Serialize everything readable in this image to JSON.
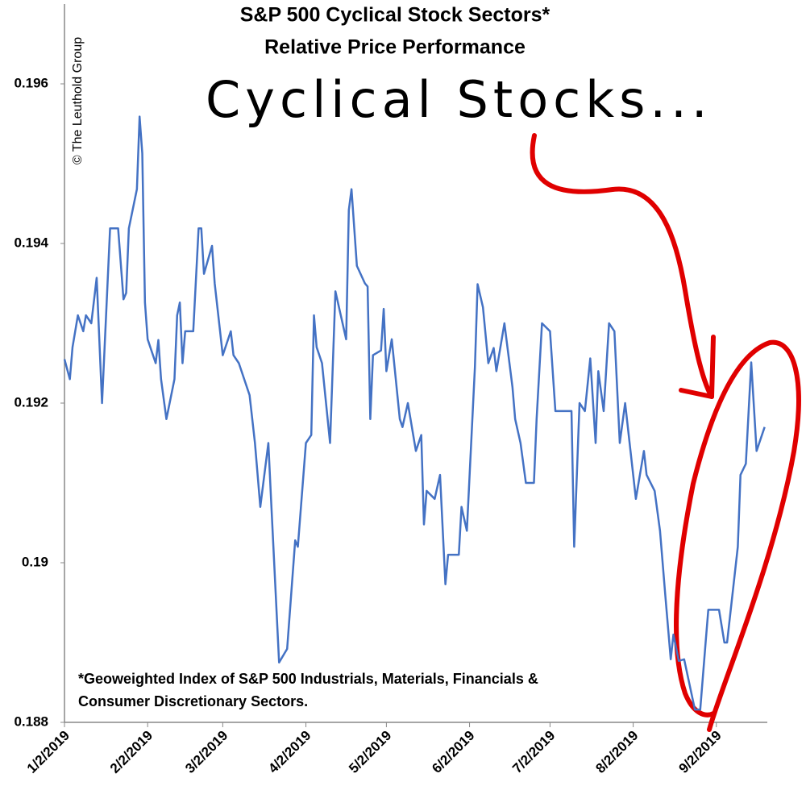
{
  "chart_data": {
    "type": "line",
    "title": [
      "S&P 500 Cyclical Stock Sectors*",
      "Relative Price Performance"
    ],
    "source": "© The Leuthold Group",
    "callout": "Cyclical Stocks...",
    "annotations": [
      "*Geoweighted Index of S&P 500 Industrials, Materials, Financials &",
      "Consumer Discretionary Sectors."
    ],
    "color": "#4472c4",
    "callout_color": "#e00000",
    "xlim": [
      "2019-01-02",
      "2019-09-21"
    ],
    "xticks": [
      {
        "value": "2019-01-02",
        "label": "1/2/2019"
      },
      {
        "value": "2019-02-02",
        "label": "2/2/2019"
      },
      {
        "value": "2019-03-02",
        "label": "3/2/2019"
      },
      {
        "value": "2019-04-02",
        "label": "4/2/2019"
      },
      {
        "value": "2019-05-02",
        "label": "5/2/2019"
      },
      {
        "value": "2019-06-02",
        "label": "6/2/2019"
      },
      {
        "value": "2019-07-02",
        "label": "7/2/2019"
      },
      {
        "value": "2019-08-02",
        "label": "8/2/2019"
      },
      {
        "value": "2019-09-02",
        "label": "9/2/2019"
      }
    ],
    "ylim": [
      0.188,
      0.197
    ],
    "yticks": [
      0.188,
      0.19,
      0.192,
      0.194,
      0.196
    ],
    "grid": false,
    "x": [
      "2019-01-02",
      "2019-01-04",
      "2019-01-05",
      "2019-01-07",
      "2019-01-09",
      "2019-01-10",
      "2019-01-12",
      "2019-01-14",
      "2019-01-16",
      "2019-01-19",
      "2019-01-22",
      "2019-01-24",
      "2019-01-25",
      "2019-01-26",
      "2019-01-29",
      "2019-01-30",
      "2019-01-31",
      "2019-02-01",
      "2019-02-02",
      "2019-02-05",
      "2019-02-06",
      "2019-02-07",
      "2019-02-09",
      "2019-02-12",
      "2019-02-13",
      "2019-02-14",
      "2019-02-15",
      "2019-02-16",
      "2019-02-19",
      "2019-02-21",
      "2019-02-22",
      "2019-02-23",
      "2019-02-26",
      "2019-02-27",
      "2019-03-02",
      "2019-03-05",
      "2019-03-06",
      "2019-03-08",
      "2019-03-12",
      "2019-03-14",
      "2019-03-16",
      "2019-03-19",
      "2019-03-20",
      "2019-03-23",
      "2019-03-26",
      "2019-03-29",
      "2019-03-30",
      "2019-04-02",
      "2019-04-04",
      "2019-04-05",
      "2019-04-06",
      "2019-04-08",
      "2019-04-11",
      "2019-04-13",
      "2019-04-17",
      "2019-04-18",
      "2019-04-19",
      "2019-04-21",
      "2019-04-24",
      "2019-04-25",
      "2019-04-26",
      "2019-04-27",
      "2019-04-30",
      "2019-05-01",
      "2019-05-02",
      "2019-05-04",
      "2019-05-07",
      "2019-05-08",
      "2019-05-10",
      "2019-05-12",
      "2019-05-13",
      "2019-05-15",
      "2019-05-16",
      "2019-05-17",
      "2019-05-20",
      "2019-05-22",
      "2019-05-24",
      "2019-05-25",
      "2019-05-29",
      "2019-05-30",
      "2019-06-01",
      "2019-06-04",
      "2019-06-05",
      "2019-06-07",
      "2019-06-09",
      "2019-06-11",
      "2019-06-12",
      "2019-06-15",
      "2019-06-18",
      "2019-06-19",
      "2019-06-21",
      "2019-06-23",
      "2019-06-26",
      "2019-06-27",
      "2019-06-29",
      "2019-07-02",
      "2019-07-04",
      "2019-07-06",
      "2019-07-10",
      "2019-07-11",
      "2019-07-13",
      "2019-07-15",
      "2019-07-17",
      "2019-07-19",
      "2019-07-20",
      "2019-07-22",
      "2019-07-24",
      "2019-07-26",
      "2019-07-28",
      "2019-07-30",
      "2019-08-01",
      "2019-08-03",
      "2019-08-06",
      "2019-08-07",
      "2019-08-10",
      "2019-08-12",
      "2019-08-14",
      "2019-08-16",
      "2019-08-17",
      "2019-08-19",
      "2019-08-21",
      "2019-08-25",
      "2019-08-27",
      "2019-08-29",
      "2019-08-30",
      "2019-09-03",
      "2019-09-05",
      "2019-09-06",
      "2019-09-10",
      "2019-09-11",
      "2019-09-13",
      "2019-09-15",
      "2019-09-17",
      "2019-09-20"
    ],
    "values": [
      0.19255,
      0.1923,
      0.1927,
      0.1931,
      0.1929,
      0.1931,
      0.193,
      0.19357,
      0.192,
      0.19419,
      0.19419,
      0.1933,
      0.19338,
      0.19419,
      0.19468,
      0.19559,
      0.19513,
      0.19326,
      0.1928,
      0.1925,
      0.19279,
      0.1923,
      0.1918,
      0.1923,
      0.1931,
      0.19326,
      0.1925,
      0.1929,
      0.1929,
      0.19419,
      0.19419,
      0.19362,
      0.19397,
      0.1935,
      0.1926,
      0.1929,
      0.1926,
      0.1925,
      0.1921,
      0.1915,
      0.1907,
      0.1915,
      0.1908,
      0.18875,
      0.18892,
      0.19028,
      0.1902,
      0.1915,
      0.1916,
      0.1931,
      0.1927,
      0.1925,
      0.1915,
      0.1934,
      0.1928,
      0.19442,
      0.19468,
      0.19372,
      0.1935,
      0.19346,
      0.1918,
      0.1926,
      0.19266,
      0.19318,
      0.1924,
      0.1928,
      0.1918,
      0.1917,
      0.192,
      0.1916,
      0.1914,
      0.1916,
      0.19048,
      0.1909,
      0.1908,
      0.1911,
      0.18973,
      0.1901,
      0.1901,
      0.1907,
      0.1904,
      0.19245,
      0.19349,
      0.1932,
      0.1925,
      0.19269,
      0.1924,
      0.193,
      0.1922,
      0.1918,
      0.1915,
      0.191,
      0.191,
      0.1918,
      0.193,
      0.1929,
      0.1919,
      0.1919,
      0.1919,
      0.1902,
      0.192,
      0.1919,
      0.19256,
      0.1915,
      0.1924,
      0.1919,
      0.193,
      0.1929,
      0.1915,
      0.192,
      0.1914,
      0.1908,
      0.1914,
      0.1911,
      0.1909,
      0.1904,
      0.18958,
      0.18879,
      0.1891,
      0.18877,
      0.18879,
      0.18816,
      0.18816,
      0.189,
      0.18941,
      0.18941,
      0.189,
      0.189,
      0.1902,
      0.1911,
      0.19124,
      0.19251,
      0.1914,
      0.1917
    ]
  }
}
